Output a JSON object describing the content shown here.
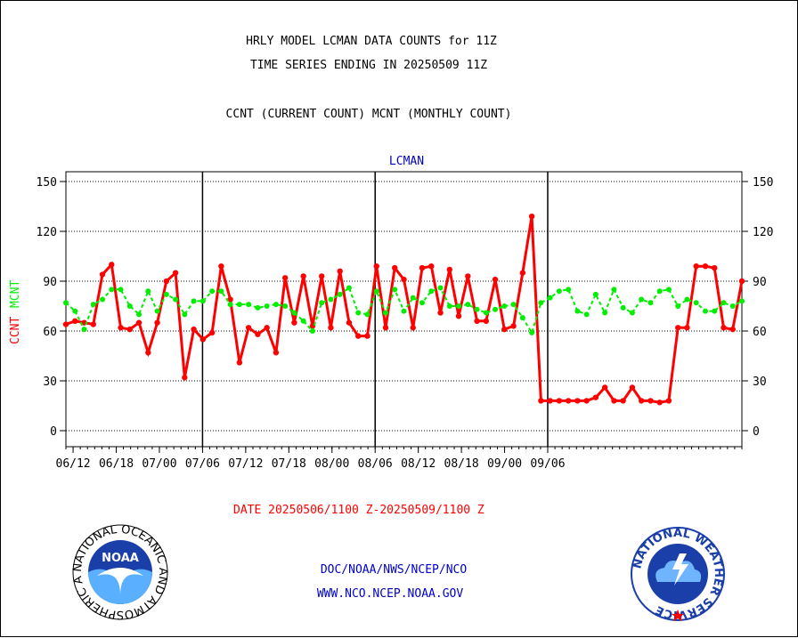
{
  "header": {
    "title_line1": "HRLY MODEL LCMAN DATA COUNTS for 11Z",
    "title_line2": "TIME SERIES ENDING IN 20250509 11Z",
    "subtitle": "CCNT (CURRENT COUNT) MCNT (MONTHLY COUNT)"
  },
  "footer": {
    "date_range": "DATE 20250506/1100 Z-20250509/1100 Z",
    "org_line": "DOC/NOAA/NWS/NCEP/NCO",
    "url_line": "WWW.NCO.NCEP.NOAA.GOV",
    "noaa_logo_text": "NOAA",
    "noaa_ring_text": "NATIONAL OCEANIC AND ATMOSPHERIC ADMINISTRATION · U.S. DEPARTMENT OF COMMERCE ·",
    "nws_ring_text": "NATIONAL WEATHER SERVICE"
  },
  "colors": {
    "ccnt": "#ff0000",
    "mcnt": "#00ee00",
    "title": "#000000",
    "plot_title": "#0000cc",
    "date": "#ff0000",
    "footer": "#0000cc"
  },
  "chart_data": {
    "type": "line",
    "plot_title": "LCMAN",
    "ylabel_ccnt": "CCNT",
    "ylabel_mcnt": "MCNT",
    "ylim": [
      -10,
      156
    ],
    "yticks": [
      0,
      30,
      60,
      90,
      120,
      150
    ],
    "x_start": "06/11",
    "x_end": "09/12",
    "x_days": 94,
    "xticks": [
      {
        "label": "06/12",
        "day": 1
      },
      {
        "label": "06/18",
        "day": 7
      },
      {
        "label": "07/00",
        "day": 13
      },
      {
        "label": "07/06",
        "day": 19
      },
      {
        "label": "07/12",
        "day": 25
      },
      {
        "label": "07/18",
        "day": 31
      },
      {
        "label": "08/00",
        "day": 37
      },
      {
        "label": "08/06",
        "day": 43
      },
      {
        "label": "08/12",
        "day": 49
      },
      {
        "label": "08/18",
        "day": 55
      },
      {
        "label": "09/00",
        "day": 61
      },
      {
        "label": "09/06",
        "day": 67
      }
    ],
    "major_lines_day": [
      19,
      43,
      67
    ],
    "grid": true,
    "series": [
      {
        "name": "CCNT",
        "values": [
          64,
          66,
          65,
          64,
          94,
          100,
          62,
          61,
          65,
          47,
          65,
          90,
          95,
          32,
          61,
          55,
          59,
          99,
          79,
          41,
          62,
          58,
          62,
          47,
          92,
          65,
          93,
          63,
          93,
          62,
          96,
          65,
          57,
          57,
          99,
          62,
          98,
          91,
          62,
          98,
          99,
          71,
          97,
          69,
          93,
          66,
          66,
          91,
          61,
          63,
          95,
          129,
          18,
          18,
          18,
          18,
          18,
          18,
          20,
          26,
          18,
          18,
          26,
          18,
          18,
          17,
          18,
          62,
          62,
          99,
          99,
          98,
          62,
          61,
          90
        ]
      },
      {
        "name": "MCNT",
        "values": [
          77,
          72,
          61,
          76,
          79,
          85,
          85,
          75,
          70,
          84,
          72,
          82,
          79,
          70,
          78,
          78,
          84,
          84,
          76,
          76,
          76,
          74,
          75,
          76,
          75,
          71,
          66,
          60,
          77,
          79,
          82,
          86,
          71,
          70,
          84,
          71,
          85,
          72,
          80,
          77,
          84,
          86,
          75,
          75,
          76,
          73,
          71,
          73,
          75,
          76,
          68,
          59,
          77,
          80,
          84,
          85,
          72,
          70,
          82,
          71,
          85,
          74,
          71,
          79,
          77,
          84,
          85,
          75,
          79,
          77,
          72,
          72,
          77,
          75,
          78
        ]
      }
    ]
  }
}
